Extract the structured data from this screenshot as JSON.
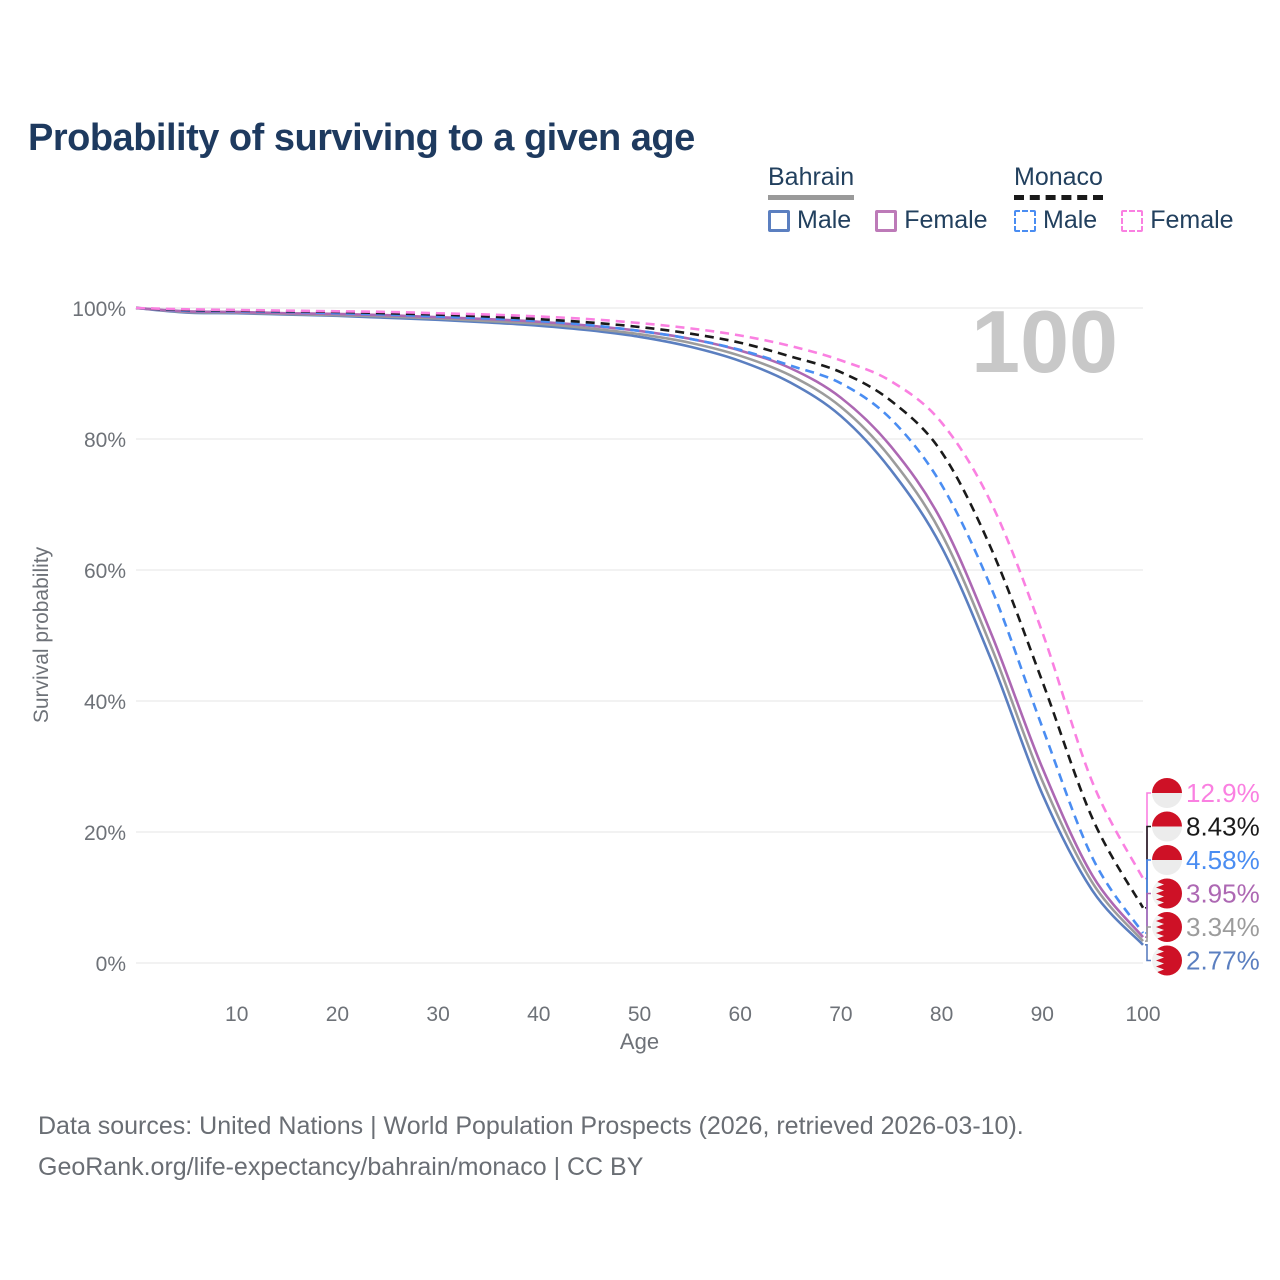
{
  "page": {
    "title": "Probability of surviving to a given age"
  },
  "legend": {
    "groups": [
      {
        "key": "bahrain",
        "name": "Bahrain",
        "underline_style": "solid",
        "underline_color": "#9a9a9a",
        "items": [
          {
            "label": "Male",
            "color": "#5b7fc0",
            "style": "solid"
          },
          {
            "label": "Female",
            "color": "#bd7ab8",
            "style": "solid"
          }
        ]
      },
      {
        "key": "monaco",
        "name": "Monaco",
        "underline_style": "dashed",
        "underline_color": "#1a1a1a",
        "items": [
          {
            "label": "Male",
            "color": "#4a8df2",
            "style": "dashed"
          },
          {
            "label": "Female",
            "color": "#fa80e1",
            "style": "dashed"
          }
        ]
      }
    ]
  },
  "footer": {
    "line1": "Data sources: United Nations | World Population Prospects (2026, retrieved 2026-03-10).",
    "line2": "GeoRank.org/life-expectancy/bahrain/monaco | CC BY"
  },
  "chart_data": {
    "type": "line",
    "title": "Probability of surviving to a given age",
    "xlabel": "Age",
    "ylabel": "Survival probability",
    "xlim": [
      0,
      100
    ],
    "ylim": [
      0,
      100
    ],
    "x_ticks": [
      10,
      20,
      30,
      40,
      50,
      60,
      70,
      80,
      90,
      100
    ],
    "y_tick_labels": [
      "0%",
      "20%",
      "40%",
      "60%",
      "80%",
      "100%"
    ],
    "grid": "horizontal",
    "legend_position": "top-right",
    "watermark": "100",
    "flag_red": "#ce1126",
    "ages": [
      0,
      5,
      10,
      15,
      20,
      25,
      30,
      35,
      40,
      45,
      50,
      55,
      60,
      65,
      70,
      75,
      80,
      85,
      90,
      95,
      100
    ],
    "series": [
      {
        "key": "monaco-female",
        "country": "Monaco",
        "sex": "Female",
        "color": "#fa80e1",
        "line_style": "dashed",
        "flag": "monaco",
        "end_label": "12.9%",
        "values": [
          100,
          99.8,
          99.7,
          99.6,
          99.5,
          99.4,
          99.2,
          99.0,
          98.7,
          98.3,
          97.7,
          96.9,
          95.8,
          94.2,
          92.0,
          88.8,
          82.5,
          70.0,
          50.5,
          27.5,
          12.9
        ]
      },
      {
        "key": "monaco-both",
        "country": "Monaco",
        "sex": "Both",
        "color": "#1a1a1a",
        "line_style": "dashed",
        "flag": "monaco",
        "end_label": "8.43%",
        "values": [
          100,
          99.7,
          99.6,
          99.5,
          99.4,
          99.2,
          99.0,
          98.7,
          98.3,
          97.8,
          97.1,
          96.1,
          94.7,
          92.6,
          90.2,
          85.8,
          78.0,
          63.0,
          43.0,
          22.0,
          8.43
        ]
      },
      {
        "key": "monaco-male",
        "country": "Monaco",
        "sex": "Male",
        "color": "#4a8df2",
        "line_style": "dashed",
        "flag": "monaco",
        "end_label": "4.58%",
        "values": [
          100,
          99.6,
          99.5,
          99.4,
          99.2,
          99.0,
          98.7,
          98.4,
          98.0,
          97.4,
          96.5,
          95.3,
          93.6,
          91.2,
          88.5,
          83.0,
          73.0,
          57.0,
          36.0,
          16.0,
          4.58
        ]
      },
      {
        "key": "bahrain-female",
        "country": "Bahrain",
        "sex": "Female",
        "color": "#ad68b3",
        "line_style": "solid",
        "flag": "bahrain",
        "end_label": "3.95%",
        "values": [
          100,
          99.5,
          99.4,
          99.2,
          99.1,
          98.9,
          98.6,
          98.3,
          97.9,
          97.3,
          96.5,
          95.3,
          93.5,
          90.8,
          86.3,
          78.8,
          67.5,
          50.0,
          29.8,
          13.3,
          3.95
        ]
      },
      {
        "key": "bahrain-both",
        "country": "Bahrain",
        "sex": "Both",
        "color": "#9c9c9c",
        "line_style": "solid",
        "flag": "bahrain",
        "end_label": "3.34%",
        "values": [
          100,
          99.4,
          99.3,
          99.1,
          98.9,
          98.7,
          98.4,
          98.0,
          97.6,
          96.9,
          96.0,
          94.7,
          92.7,
          89.7,
          84.9,
          77.0,
          65.5,
          48.0,
          27.8,
          12.2,
          3.34
        ]
      },
      {
        "key": "bahrain-male",
        "country": "Bahrain",
        "sex": "Male",
        "color": "#5b7fc0",
        "line_style": "solid",
        "flag": "bahrain",
        "end_label": "2.77%",
        "values": [
          100,
          99.3,
          99.2,
          99.0,
          98.8,
          98.5,
          98.2,
          97.8,
          97.3,
          96.6,
          95.6,
          94.1,
          91.9,
          88.6,
          83.5,
          75.2,
          63.5,
          46.0,
          25.8,
          11.0,
          2.77
        ]
      }
    ]
  }
}
